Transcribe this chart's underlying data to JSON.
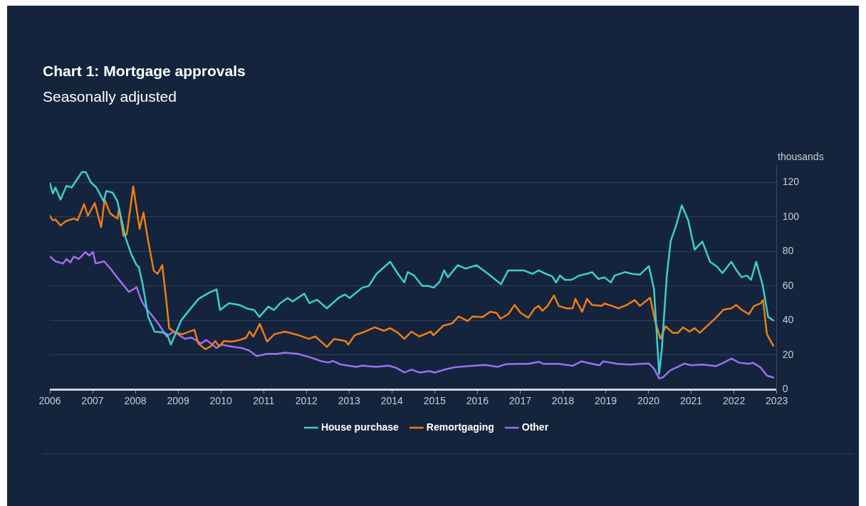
{
  "chart_data": {
    "type": "line",
    "title": "Chart 1: Mortgage approvals",
    "subtitle": "Seasonally adjusted",
    "ylabel": "thousands",
    "xlim": [
      2006,
      2023
    ],
    "xticks": [
      2006,
      2007,
      2008,
      2009,
      2010,
      2011,
      2012,
      2013,
      2014,
      2015,
      2016,
      2017,
      2018,
      2019,
      2020,
      2021,
      2022,
      2023
    ],
    "ylim": [
      0,
      130
    ],
    "yticks": [
      0,
      20,
      40,
      60,
      80,
      100,
      120
    ],
    "grid": "y",
    "legend": "bottom",
    "marker": "none",
    "line_style": "solid",
    "series": [
      {
        "name": "House purchase",
        "color": "#3ccfcf",
        "x": [
          2006.0,
          2006.07,
          2006.13,
          2006.25,
          2006.39,
          2006.51,
          2006.59,
          2006.75,
          2006.84,
          2006.96,
          2007.09,
          2007.26,
          2007.32,
          2007.47,
          2007.58,
          2007.77,
          2007.91,
          2008.03,
          2008.08,
          2008.17,
          2008.3,
          2008.45,
          2008.65,
          2008.74,
          2008.83,
          2008.95,
          2009.07,
          2009.25,
          2009.48,
          2009.72,
          2009.9,
          2009.98,
          2010.19,
          2010.43,
          2010.6,
          2010.78,
          2010.9,
          2011.11,
          2011.24,
          2011.39,
          2011.56,
          2011.68,
          2011.95,
          2012.07,
          2012.25,
          2012.48,
          2012.75,
          2012.9,
          2013.01,
          2013.31,
          2013.46,
          2013.64,
          2013.96,
          2014.14,
          2014.29,
          2014.37,
          2014.52,
          2014.71,
          2014.85,
          2014.98,
          2015.12,
          2015.22,
          2015.31,
          2015.54,
          2015.72,
          2015.98,
          2016.25,
          2016.55,
          2016.72,
          2017.08,
          2017.29,
          2017.43,
          2017.6,
          2017.75,
          2017.84,
          2017.93,
          2018.05,
          2018.2,
          2018.38,
          2018.56,
          2018.68,
          2018.83,
          2018.97,
          2019.12,
          2019.21,
          2019.45,
          2019.62,
          2019.8,
          2020.01,
          2020.13,
          2020.25,
          2020.31,
          2020.43,
          2020.52,
          2020.64,
          2020.78,
          2020.93,
          2021.08,
          2021.26,
          2021.44,
          2021.61,
          2021.73,
          2021.94,
          2022.06,
          2022.18,
          2022.3,
          2022.4,
          2022.52,
          2022.67,
          2022.8,
          2022.92
        ],
        "values": [
          119.6,
          113.5,
          117,
          110,
          118,
          117,
          120,
          126,
          126,
          120,
          117,
          109,
          115,
          114,
          109,
          88,
          78,
          72,
          71,
          61,
          42,
          33.5,
          33,
          32,
          26,
          33,
          40,
          45.6,
          52.5,
          56,
          58,
          46,
          50,
          49,
          47,
          46,
          42,
          48,
          46,
          50,
          53,
          51,
          55.5,
          50,
          52,
          47,
          53,
          55,
          53,
          59,
          60,
          67,
          74,
          67,
          62,
          68,
          66,
          60,
          60,
          59,
          62.5,
          69,
          65,
          72,
          70,
          72,
          67,
          61,
          69,
          69,
          67,
          69,
          67,
          65.5,
          62,
          66,
          63.5,
          63.5,
          66,
          67,
          68,
          64,
          65,
          62,
          66,
          68,
          67,
          66.5,
          71.5,
          58,
          9,
          22.6,
          66,
          86,
          94.5,
          106.7,
          98,
          81,
          85.7,
          74,
          71,
          67.4,
          74,
          69,
          65,
          66,
          63.5,
          74,
          60.6,
          42,
          40
        ]
      },
      {
        "name": "Remortgaging",
        "color": "#f07d14",
        "x": [
          2006.0,
          2006.07,
          2006.13,
          2006.25,
          2006.38,
          2006.57,
          2006.65,
          2006.8,
          2006.89,
          2007.05,
          2007.2,
          2007.28,
          2007.41,
          2007.58,
          2007.62,
          2007.72,
          2007.8,
          2007.95,
          2008.1,
          2008.19,
          2008.3,
          2008.43,
          2008.52,
          2008.63,
          2008.73,
          2008.79,
          2008.93,
          2009.1,
          2009.38,
          2009.47,
          2009.64,
          2009.76,
          2009.87,
          2009.96,
          2010.07,
          2010.25,
          2010.42,
          2010.59,
          2010.67,
          2010.76,
          2010.91,
          2011.08,
          2011.25,
          2011.5,
          2011.82,
          2012.06,
          2012.21,
          2012.48,
          2012.65,
          2012.92,
          2012.98,
          2013.13,
          2013.37,
          2013.6,
          2013.81,
          2013.96,
          2014.14,
          2014.29,
          2014.46,
          2014.64,
          2014.91,
          2014.97,
          2015.2,
          2015.41,
          2015.56,
          2015.77,
          2015.89,
          2016.12,
          2016.3,
          2016.45,
          2016.54,
          2016.72,
          2016.87,
          2017.01,
          2017.19,
          2017.34,
          2017.43,
          2017.52,
          2017.64,
          2017.79,
          2017.9,
          2018.08,
          2018.23,
          2018.29,
          2018.45,
          2018.56,
          2018.68,
          2018.91,
          2018.97,
          2019.15,
          2019.3,
          2019.5,
          2019.68,
          2019.8,
          2020.04,
          2020.16,
          2020.28,
          2020.4,
          2020.57,
          2020.69,
          2020.81,
          2020.96,
          2021.08,
          2021.2,
          2021.34,
          2021.58,
          2021.76,
          2021.94,
          2022.05,
          2022.17,
          2022.35,
          2022.47,
          2022.62,
          2022.68,
          2022.77,
          2022.92
        ],
        "values": [
          100.6,
          98,
          98.5,
          95,
          97.6,
          99,
          98,
          107.4,
          100.6,
          108,
          94,
          110,
          102,
          99,
          105,
          89,
          90,
          117.6,
          93,
          102.6,
          86,
          68.8,
          67,
          72,
          50,
          35.5,
          33,
          32,
          34.6,
          26.7,
          23.3,
          25,
          28,
          25,
          28,
          27.7,
          28.5,
          30,
          33.6,
          30.6,
          38,
          27.7,
          32,
          33.5,
          31.4,
          29.3,
          30.7,
          24.7,
          29.3,
          28,
          26,
          31.4,
          33.5,
          36,
          34,
          35.5,
          32.8,
          29.3,
          33.5,
          30.7,
          33.5,
          31.4,
          36.9,
          38.3,
          42.3,
          39.6,
          42.3,
          41.9,
          45,
          44.3,
          41,
          43.6,
          49,
          44.3,
          41.6,
          47,
          48.4,
          45.6,
          48.4,
          54.5,
          48.4,
          47,
          47,
          52.5,
          45,
          52.5,
          49,
          48.4,
          49.8,
          48.4,
          47,
          49,
          51.8,
          48.4,
          53.2,
          39,
          29.4,
          36.6,
          32.8,
          32.8,
          36,
          33.5,
          35.5,
          32.8,
          36,
          41.6,
          46.3,
          47,
          49,
          46.3,
          43.6,
          48.4,
          49.8,
          51.8,
          32.1,
          25.3
        ]
      },
      {
        "name": "Other",
        "color": "#a06ef0",
        "x": [
          2006.01,
          2006.13,
          2006.31,
          2006.39,
          2006.48,
          2006.56,
          2006.68,
          2006.83,
          2006.92,
          2007.01,
          2007.07,
          2007.27,
          2007.42,
          2007.56,
          2007.67,
          2007.85,
          2008.03,
          2008.15,
          2008.27,
          2008.41,
          2008.55,
          2008.73,
          2008.9,
          2009.15,
          2009.32,
          2009.54,
          2009.66,
          2009.9,
          2010.01,
          2010.25,
          2010.49,
          2010.66,
          2010.84,
          2011.07,
          2011.31,
          2011.5,
          2011.8,
          2012.09,
          2012.33,
          2012.51,
          2012.62,
          2012.8,
          2013.16,
          2013.31,
          2013.63,
          2013.93,
          2014.11,
          2014.29,
          2014.46,
          2014.64,
          2014.88,
          2015.0,
          2015.24,
          2015.47,
          2015.77,
          2016.18,
          2016.48,
          2016.66,
          2016.96,
          2017.19,
          2017.43,
          2017.55,
          2017.9,
          2018.23,
          2018.44,
          2018.68,
          2018.86,
          2018.94,
          2019.27,
          2019.56,
          2019.8,
          2020.01,
          2020.13,
          2020.25,
          2020.34,
          2020.51,
          2020.69,
          2020.84,
          2020.99,
          2021.28,
          2021.58,
          2021.76,
          2021.94,
          2022.12,
          2022.35,
          2022.44,
          2022.62,
          2022.77,
          2022.92
        ],
        "values": [
          76.9,
          74.2,
          73,
          75.6,
          73.6,
          77,
          75.6,
          79.6,
          77.6,
          79.6,
          73,
          74.2,
          70,
          65.4,
          62,
          56.5,
          59.2,
          51,
          46.4,
          42.3,
          37.6,
          30.8,
          33.5,
          29.4,
          30,
          26.7,
          28.7,
          24,
          26,
          24.8,
          24,
          22.6,
          19.3,
          20.6,
          20.6,
          21.3,
          20.6,
          18.6,
          16.5,
          15.6,
          16.5,
          14.5,
          13.1,
          13.8,
          13.1,
          13.8,
          12.4,
          9.8,
          11.5,
          9.8,
          10.6,
          9.8,
          11.5,
          12.9,
          13.5,
          14.2,
          13.1,
          14.6,
          14.8,
          14.8,
          16,
          14.8,
          14.8,
          13.7,
          16.3,
          14.8,
          14,
          16.3,
          14.8,
          14.4,
          14.8,
          15,
          12.1,
          6.4,
          7,
          11.1,
          13.1,
          15,
          14,
          14.4,
          13.5,
          15.5,
          17.9,
          15.5,
          14.8,
          15.5,
          12.8,
          8,
          6.9
        ]
      }
    ]
  }
}
